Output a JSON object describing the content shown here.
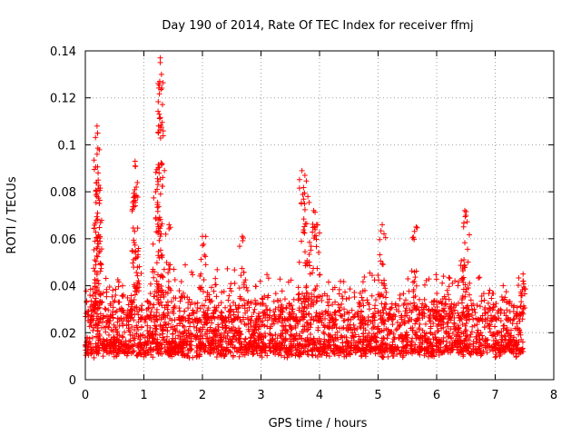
{
  "chart_data": {
    "type": "scatter",
    "title": "Day 190 of 2014, Rate Of TEC Index for receiver ffmj",
    "xlabel": "GPS time / hours",
    "ylabel": "ROTI / TECUs",
    "xlim": [
      0,
      8
    ],
    "ylim": [
      0,
      0.14
    ],
    "x_ticks": [
      "0",
      "1",
      "2",
      "3",
      "4",
      "5",
      "6",
      "7",
      "8"
    ],
    "y_ticks": [
      "0",
      "0.02",
      "0.04",
      "0.06",
      "0.08",
      "0.1",
      "0.12",
      "0.14"
    ],
    "grid": true,
    "marker": "+",
    "marker_color": "#ff0000",
    "series": [
      {
        "name": "ROTI",
        "generated_from": "envelope",
        "x_range": [
          0,
          7.48
        ],
        "baseline_band": [
          0.005,
          0.03
        ],
        "highlights": [
          {
            "x": 0.2,
            "y": 0.108
          },
          {
            "x": 0.21,
            "y": 0.105
          },
          {
            "x": 0.2,
            "y": 0.096
          },
          {
            "x": 0.22,
            "y": 0.085
          },
          {
            "x": 0.2,
            "y": 0.078
          },
          {
            "x": 0.22,
            "y": 0.061
          },
          {
            "x": 0.85,
            "y": 0.093
          },
          {
            "x": 0.85,
            "y": 0.091
          },
          {
            "x": 0.87,
            "y": 0.082
          },
          {
            "x": 0.84,
            "y": 0.078
          },
          {
            "x": 1.28,
            "y": 0.137
          },
          {
            "x": 1.28,
            "y": 0.135
          },
          {
            "x": 1.3,
            "y": 0.13
          },
          {
            "x": 1.27,
            "y": 0.127
          },
          {
            "x": 1.25,
            "y": 0.108
          },
          {
            "x": 1.26,
            "y": 0.088
          },
          {
            "x": 1.2,
            "y": 0.08
          },
          {
            "x": 1.43,
            "y": 0.066
          },
          {
            "x": 2.0,
            "y": 0.061
          },
          {
            "x": 2.68,
            "y": 0.061
          },
          {
            "x": 3.7,
            "y": 0.089
          },
          {
            "x": 3.75,
            "y": 0.087
          },
          {
            "x": 3.8,
            "y": 0.078
          },
          {
            "x": 3.9,
            "y": 0.072
          },
          {
            "x": 3.95,
            "y": 0.066
          },
          {
            "x": 5.07,
            "y": 0.066
          },
          {
            "x": 5.65,
            "y": 0.065
          },
          {
            "x": 6.48,
            "y": 0.072
          },
          {
            "x": 6.5,
            "y": 0.07
          },
          {
            "x": 7.48,
            "y": 0.042
          }
        ]
      }
    ]
  }
}
